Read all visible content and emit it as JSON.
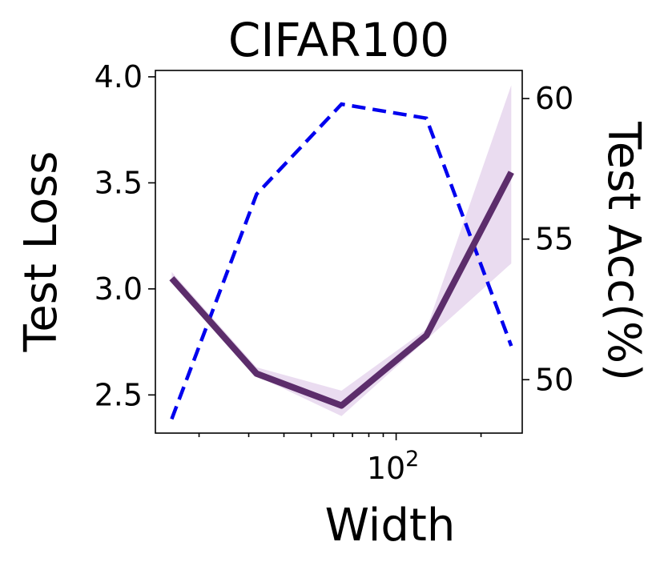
{
  "chart_data": {
    "type": "line",
    "title": "CIFAR100",
    "xlabel": "Width",
    "ylabel_left": "Test Loss",
    "ylabel_right": "Test Acc(%)",
    "x_scale": "log",
    "x": [
      16,
      32,
      64,
      128,
      256
    ],
    "xlim": [
      14,
      280
    ],
    "x_major_ticks": [
      {
        "value": 100,
        "base": "10",
        "exp": "2"
      }
    ],
    "x_minor_ticks": [
      20,
      30,
      40,
      50,
      60,
      70,
      80,
      90,
      200
    ],
    "ylim_left": [
      2.32,
      4.03
    ],
    "yticks_left": [
      "2.5",
      "3.0",
      "3.5",
      "4.0"
    ],
    "ylim_right": [
      48.1,
      61.0
    ],
    "yticks_right": [
      "50",
      "55",
      "60"
    ],
    "series": [
      {
        "axis": "left",
        "values": [
          3.05,
          2.6,
          2.45,
          2.78,
          3.55
        ],
        "band_low": [
          3.03,
          2.59,
          2.4,
          2.76,
          3.12
        ],
        "band_high": [
          3.08,
          2.63,
          2.52,
          2.81,
          3.96
        ],
        "color": "#5c2d6b",
        "band_color": "#eadcf0",
        "style": "solid"
      },
      {
        "axis": "right",
        "values": [
          48.6,
          56.6,
          59.8,
          59.3,
          51.2
        ],
        "color": "#0000ee",
        "style": "dashed"
      }
    ],
    "grid": false,
    "legend": "none"
  }
}
